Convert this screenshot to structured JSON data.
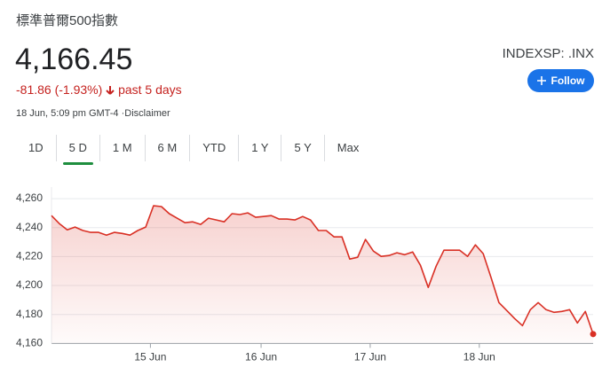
{
  "header": {
    "title": "標準普爾500指數",
    "price": "4,166.45",
    "change": "-81.86 (-1.93%)",
    "period": "past 5 days",
    "timestamp": "18 Jun, 5:09 pm GMT-4",
    "disclaimer": "Disclaimer",
    "ticker": "INDEXSP: .INX",
    "follow": "Follow"
  },
  "tabs": {
    "items": [
      "1D",
      "5 D",
      "1 M",
      "6 M",
      "YTD",
      "1 Y",
      "5 Y",
      "Max"
    ],
    "selected": 1
  },
  "chart_data": {
    "type": "line",
    "color": "#d93025",
    "values": [
      4248.3,
      4242.8,
      4238.5,
      4240.4,
      4238,
      4236.7,
      4236.7,
      4234.8,
      4236.7,
      4236,
      4234.8,
      4238,
      4240.4,
      4255.1,
      4254.5,
      4249.6,
      4246.5,
      4243.4,
      4244,
      4242.2,
      4246.5,
      4245.3,
      4244,
      4249.6,
      4249,
      4250.2,
      4247.1,
      4247.7,
      4248.3,
      4245.9,
      4245.9,
      4245.3,
      4247.7,
      4245.3,
      4238,
      4238,
      4233.6,
      4233.6,
      4218.3,
      4219.5,
      4231.8,
      4223.8,
      4220.1,
      4220.7,
      4222.6,
      4221.3,
      4223.2,
      4214,
      4198.7,
      4213.4,
      4224.4,
      4224.4,
      4224.4,
      4220.1,
      4228.1,
      4222,
      4205.4,
      4188.2,
      4182.7,
      4177.2,
      4172.3,
      4183.3,
      4188.2,
      4183.3,
      4181.5,
      4182.1,
      4183.3,
      4174.1,
      4182.1,
      4166.45
    ],
    "xlim": [
      0,
      69
    ],
    "xticks": [
      {
        "value": 12.6,
        "label": "15 Jun"
      },
      {
        "value": 26.7,
        "label": "16 Jun"
      },
      {
        "value": 40.6,
        "label": "17 Jun"
      },
      {
        "value": 54.5,
        "label": "18 Jun"
      }
    ],
    "ylim": [
      4159,
      4268
    ],
    "yticks": [
      {
        "value": 4160,
        "label": "4,160"
      },
      {
        "value": 4180,
        "label": "4,180"
      },
      {
        "value": 4200,
        "label": "4,200"
      },
      {
        "value": 4220,
        "label": "4,220"
      },
      {
        "value": 4240,
        "label": "4,240"
      },
      {
        "value": 4260,
        "label": "4,260"
      }
    ],
    "grid": true
  }
}
